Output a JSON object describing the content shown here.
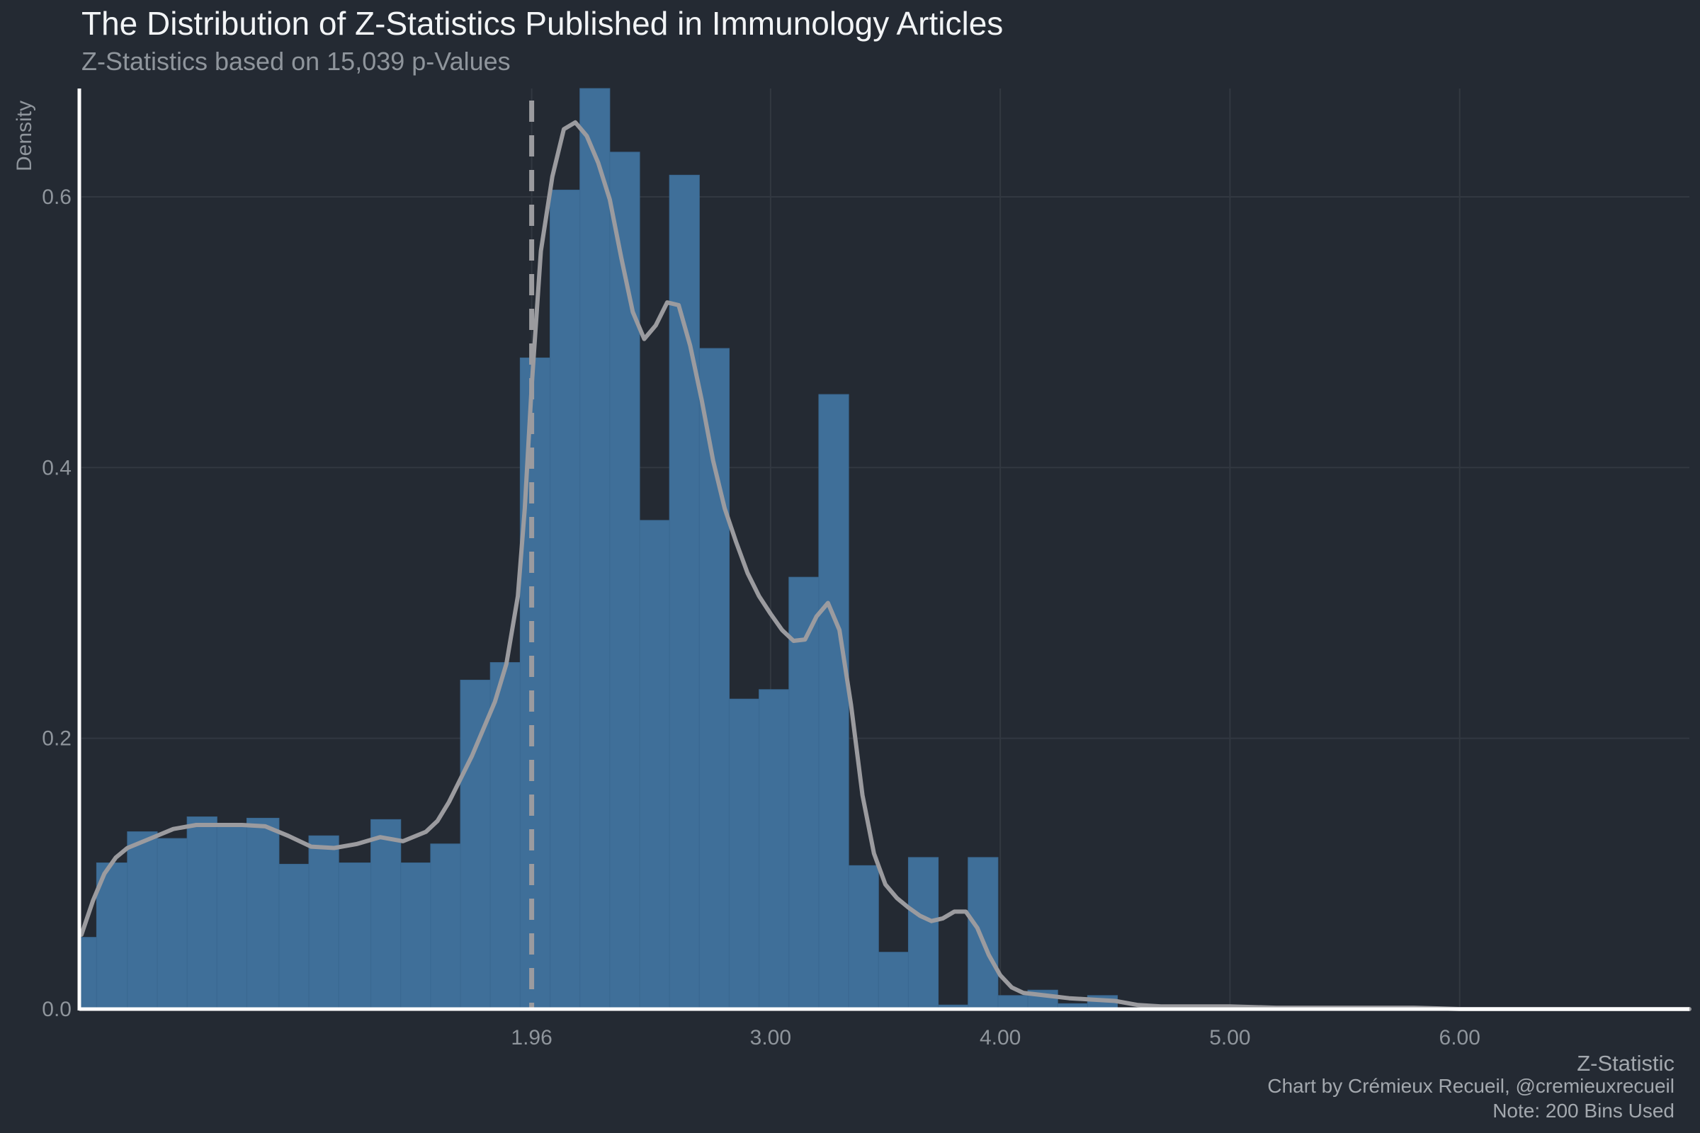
{
  "chart_data": {
    "type": "bar",
    "title": "The Distribution of Z-Statistics Published in Immunology Articles",
    "subtitle": "Z-Statistics based on 15,039 p-Values",
    "xlabel": "Z-Statistic",
    "ylabel": "Density",
    "caption_lines": [
      "Chart by Crémieux Recueil, @cremieuxrecueil",
      "Note: 200 Bins Used"
    ],
    "xlim": [
      0.0,
      7.0
    ],
    "ylim": [
      0.0,
      0.68
    ],
    "x_tick_values": [
      1.96,
      3.0,
      4.0,
      5.0,
      6.0
    ],
    "x_tick_labels": [
      "1.96",
      "3.00",
      "4.00",
      "5.00",
      "6.00"
    ],
    "y_tick_values": [
      0.0,
      0.2,
      0.4,
      0.6
    ],
    "y_tick_labels": [
      "0.0",
      "0.2",
      "0.4",
      "0.6"
    ],
    "grid": true,
    "reference_line": {
      "x": 1.96,
      "style": "dashed"
    },
    "colors": {
      "background": "#242a33",
      "bar": "#3f6f99",
      "density_line": "#9b9b9f",
      "reference_line": "#9b9b9f",
      "axis": "#ffffff",
      "grid": "#323841",
      "tick_label": "#8f959c"
    },
    "histogram": {
      "bin_edges": [
        0.0,
        0.066,
        0.2,
        0.33,
        0.46,
        0.59,
        0.72,
        0.86,
        0.99,
        1.12,
        1.26,
        1.39,
        1.52,
        1.65,
        1.78,
        1.91,
        2.04,
        2.17,
        2.3,
        2.43,
        2.56,
        2.69,
        2.82,
        2.95,
        3.08,
        3.21,
        3.34,
        3.47,
        3.6,
        3.73,
        3.86,
        3.99,
        4.12,
        4.25,
        4.38,
        4.51
      ],
      "densities": [
        0.053,
        0.108,
        0.131,
        0.126,
        0.142,
        0.137,
        0.141,
        0.107,
        0.128,
        0.108,
        0.14,
        0.108,
        0.122,
        0.243,
        0.256,
        0.481,
        0.605,
        0.68,
        0.633,
        0.361,
        0.616,
        0.488,
        0.229,
        0.236,
        0.319,
        0.454,
        0.106,
        0.042,
        0.112,
        0.003,
        0.112,
        0.01,
        0.014,
        0.004,
        0.01
      ]
    },
    "density_curve": {
      "x": [
        0.0,
        0.05,
        0.1,
        0.15,
        0.2,
        0.3,
        0.4,
        0.5,
        0.6,
        0.7,
        0.8,
        0.9,
        1.0,
        1.1,
        1.2,
        1.3,
        1.4,
        1.5,
        1.55,
        1.6,
        1.7,
        1.8,
        1.85,
        1.9,
        1.93,
        1.96,
        2.0,
        2.05,
        2.1,
        2.15,
        2.2,
        2.25,
        2.3,
        2.35,
        2.4,
        2.45,
        2.5,
        2.55,
        2.6,
        2.65,
        2.7,
        2.75,
        2.8,
        2.85,
        2.9,
        2.95,
        3.0,
        3.05,
        3.1,
        3.15,
        3.2,
        3.25,
        3.3,
        3.35,
        3.4,
        3.45,
        3.5,
        3.55,
        3.6,
        3.65,
        3.7,
        3.75,
        3.8,
        3.85,
        3.9,
        3.95,
        4.0,
        4.05,
        4.1,
        4.2,
        4.3,
        4.4,
        4.5,
        4.6,
        4.7,
        4.8,
        4.9,
        5.0,
        5.2,
        5.5,
        5.8,
        6.0,
        6.3,
        6.6,
        7.0
      ],
      "y": [
        0.055,
        0.08,
        0.1,
        0.112,
        0.119,
        0.126,
        0.133,
        0.136,
        0.136,
        0.136,
        0.135,
        0.128,
        0.12,
        0.119,
        0.122,
        0.127,
        0.124,
        0.131,
        0.139,
        0.153,
        0.187,
        0.227,
        0.255,
        0.305,
        0.37,
        0.46,
        0.56,
        0.615,
        0.65,
        0.655,
        0.645,
        0.625,
        0.598,
        0.555,
        0.515,
        0.495,
        0.505,
        0.522,
        0.52,
        0.49,
        0.45,
        0.405,
        0.37,
        0.345,
        0.322,
        0.305,
        0.292,
        0.28,
        0.272,
        0.273,
        0.29,
        0.3,
        0.28,
        0.225,
        0.158,
        0.115,
        0.092,
        0.082,
        0.075,
        0.069,
        0.065,
        0.067,
        0.072,
        0.072,
        0.06,
        0.04,
        0.025,
        0.016,
        0.012,
        0.01,
        0.008,
        0.007,
        0.006,
        0.003,
        0.002,
        0.002,
        0.002,
        0.002,
        0.001,
        0.001,
        0.001,
        0.0,
        0.0,
        0.0,
        0.0
      ]
    }
  }
}
